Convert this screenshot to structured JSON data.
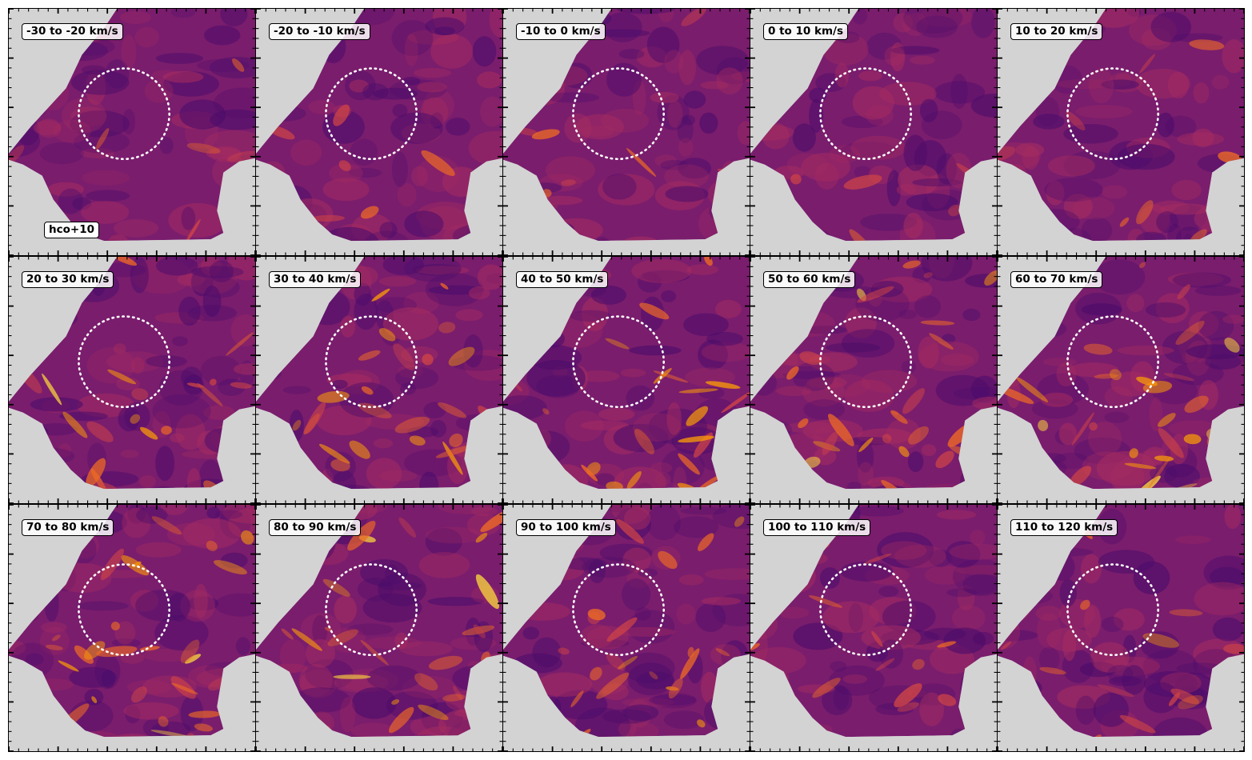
{
  "figure": {
    "molecule_label": "hco+10",
    "panels": [
      {
        "label": "-30 to -20 km/s",
        "intensity": 0.1
      },
      {
        "label": "-20 to -10 km/s",
        "intensity": 0.14
      },
      {
        "label": "-10 to 0 km/s",
        "intensity": 0.14
      },
      {
        "label": "0 to 10 km/s",
        "intensity": 0.1
      },
      {
        "label": "10 to 20 km/s",
        "intensity": 0.16
      },
      {
        "label": "20 to 30 km/s",
        "intensity": 0.45
      },
      {
        "label": "30 to 40 km/s",
        "intensity": 0.5
      },
      {
        "label": "40 to 50 km/s",
        "intensity": 0.42
      },
      {
        "label": "50 to 60 km/s",
        "intensity": 0.52
      },
      {
        "label": "60 to 70 km/s",
        "intensity": 0.55
      },
      {
        "label": "70 to 80 km/s",
        "intensity": 0.55
      },
      {
        "label": "80 to 90 km/s",
        "intensity": 0.52
      },
      {
        "label": "90 to 100 km/s",
        "intensity": 0.4
      },
      {
        "label": "100 to 110 km/s",
        "intensity": 0.28
      },
      {
        "label": "110 to 120 km/s",
        "intensity": 0.22
      }
    ],
    "colors": {
      "background": "#d3d3d3",
      "colormap": [
        "#1a0b40",
        "#4a0c6b",
        "#7a1d6d",
        "#a52c60",
        "#cf4446",
        "#ed6925",
        "#fb9b06",
        "#f7d13d",
        "#fcffa4"
      ],
      "circle": "#ffffff"
    }
  }
}
